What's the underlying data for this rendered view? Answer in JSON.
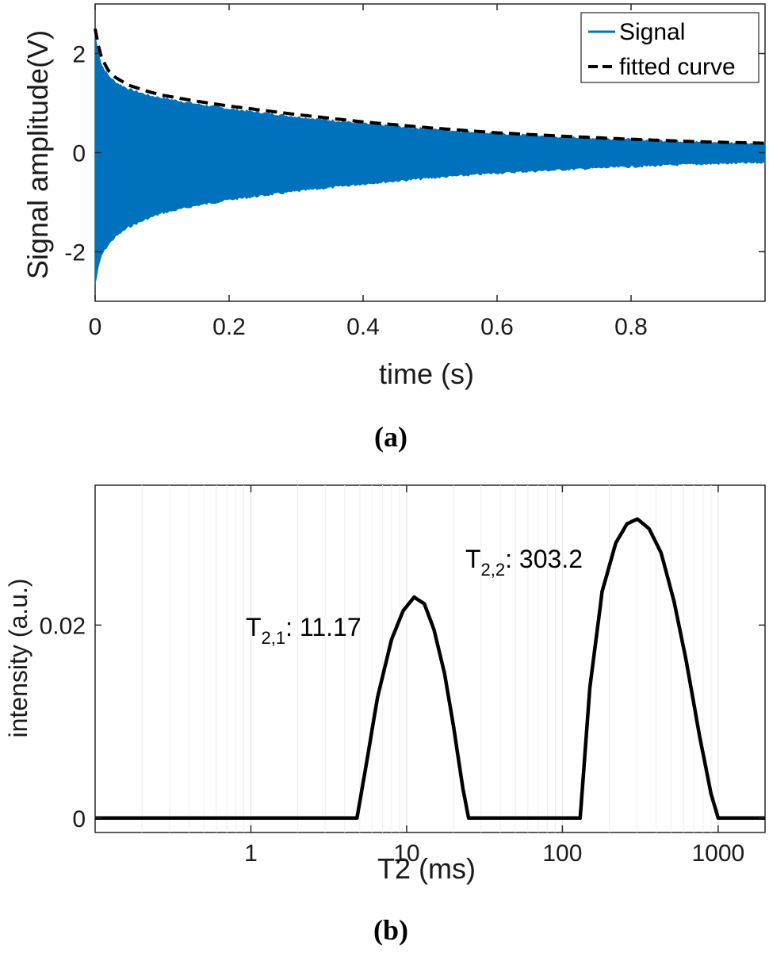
{
  "chart_data": [
    {
      "type": "line",
      "panel_label": "(a)",
      "xlabel": "time (s)",
      "ylabel": "Signal amplitude(V)",
      "xlim": [
        0,
        1
      ],
      "ylim": [
        -3,
        3
      ],
      "xticks": [
        0,
        0.2,
        0.4,
        0.6,
        0.8
      ],
      "xtick_labels": [
        "0",
        "0.2",
        "0.4",
        "0.6",
        "0.8"
      ],
      "yticks": [
        -2,
        0,
        2
      ],
      "ytick_labels": [
        "-2",
        "0",
        "2"
      ],
      "grid": false,
      "legend_position": "top-right",
      "colors": {
        "signal": "#0072BD",
        "fit": "#000000"
      },
      "series": [
        {
          "name": "Signal",
          "style": "oscillating decaying envelope (filled)",
          "x": [
            0,
            0.005,
            0.01,
            0.02,
            0.03,
            0.05,
            0.08,
            0.1,
            0.15,
            0.2,
            0.3,
            0.4,
            0.5,
            0.6,
            0.7,
            0.8,
            0.9,
            1.0
          ],
          "upper": [
            2.35,
            2.0,
            1.75,
            1.55,
            1.42,
            1.28,
            1.15,
            1.1,
            0.98,
            0.88,
            0.72,
            0.58,
            0.47,
            0.38,
            0.31,
            0.26,
            0.21,
            0.18
          ],
          "lower": [
            -2.65,
            -2.3,
            -2.05,
            -1.85,
            -1.7,
            -1.5,
            -1.32,
            -1.22,
            -1.07,
            -0.95,
            -0.78,
            -0.63,
            -0.51,
            -0.41,
            -0.34,
            -0.28,
            -0.23,
            -0.2
          ]
        },
        {
          "name": "fitted curve",
          "style": "dashed",
          "x": [
            0,
            0.005,
            0.01,
            0.02,
            0.03,
            0.05,
            0.08,
            0.1,
            0.15,
            0.2,
            0.3,
            0.4,
            0.5,
            0.6,
            0.7,
            0.8,
            0.9,
            1.0
          ],
          "values": [
            2.5,
            2.15,
            1.9,
            1.65,
            1.52,
            1.36,
            1.23,
            1.16,
            1.04,
            0.94,
            0.77,
            0.62,
            0.5,
            0.4,
            0.33,
            0.27,
            0.22,
            0.19
          ]
        }
      ]
    },
    {
      "type": "line",
      "panel_label": "(b)",
      "xlabel": "T2 (ms)",
      "ylabel": "intensity (a.u.)",
      "x_scale": "log",
      "xlim": [
        0.1,
        2000
      ],
      "ylim": [
        -0.0015,
        0.0345
      ],
      "xticks": [
        1,
        10,
        100,
        1000
      ],
      "xtick_labels": [
        "1",
        "10",
        "100",
        "1000"
      ],
      "yticks": [
        0,
        0.02
      ],
      "ytick_labels": [
        "0",
        "0.02"
      ],
      "grid": "vertical log gridlines",
      "series": [
        {
          "x": [
            0.1,
            4.8,
            5.5,
            6.5,
            8,
            9.5,
            11.17,
            13,
            15,
            17.5,
            20,
            23,
            25,
            130,
            135,
            150,
            180,
            220,
            260,
            303.2,
            360,
            430,
            520,
            620,
            760,
            900,
            1000,
            2000
          ],
          "values": [
            0,
            0,
            0.0055,
            0.0125,
            0.0185,
            0.0215,
            0.0229,
            0.0222,
            0.0195,
            0.015,
            0.0095,
            0.003,
            0,
            0,
            0.0035,
            0.0135,
            0.0235,
            0.0285,
            0.0305,
            0.031,
            0.03,
            0.0275,
            0.0225,
            0.0165,
            0.0085,
            0.0025,
            0,
            0
          ]
        }
      ],
      "annotations": [
        {
          "main": "T",
          "sub": "2,1",
          "rest": ": 11.17",
          "peak_x": 11.17
        },
        {
          "main": "T",
          "sub": "2,2",
          "rest": ": 303.2",
          "peak_x": 303.2
        }
      ]
    }
  ]
}
